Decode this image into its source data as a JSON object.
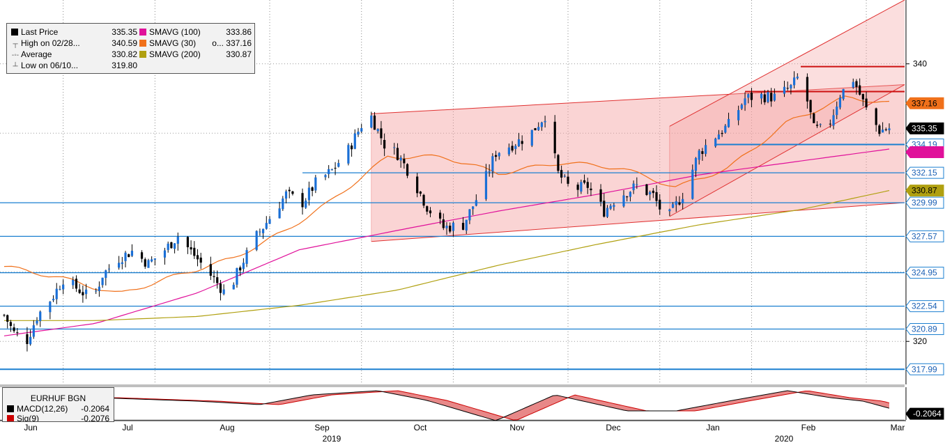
{
  "legend": {
    "rows_left": [
      {
        "symbol": "■",
        "label": "Last Price",
        "value": "335.35",
        "color": "#000000"
      },
      {
        "symbol": "┬",
        "label": "High on 02/28...",
        "value": "340.59",
        "color": ""
      },
      {
        "symbol": "-◦-",
        "label": "Average",
        "value": "330.82",
        "color": ""
      },
      {
        "symbol": "┴",
        "label": "Low on 06/10...",
        "value": "319.80",
        "color": ""
      }
    ],
    "rows_right": [
      {
        "label": "SMAVG (100)",
        "value": "333.86",
        "color": "#e0109a"
      },
      {
        "label": "SMAVG (30)",
        "value": "o... 337.16",
        "color": "#f0701a"
      },
      {
        "label": "SMAVG (200)",
        "value": "330.87",
        "color": "#b0a010"
      }
    ]
  },
  "macd_panel": {
    "title": "EURHUF BGN",
    "rows": [
      {
        "label": "MACD(12,26)",
        "value": "-0.2064",
        "color": "#000000"
      },
      {
        "label": "Sig(9)",
        "value": "-0.2076",
        "color": "#cc0000"
      }
    ],
    "last_label": "-0.2064"
  },
  "price_tags": [
    {
      "value": "337.16",
      "bg": "#f0701a",
      "fg": "#000000"
    },
    {
      "value": "335.35",
      "bg": "#000000",
      "fg": "#ffffff"
    },
    {
      "value": "334.19",
      "bg": "#ffffff",
      "fg": "#1a5fb4",
      "border": "#1a7fd0"
    },
    {
      "value": "333.86",
      "bg": "#e0109a",
      "fg": "#e0109a"
    },
    {
      "value": "332.15",
      "bg": "#ffffff",
      "fg": "#1a5fb4",
      "border": "#1a7fd0"
    },
    {
      "value": "330.87",
      "bg": "#b0a010",
      "fg": "#000000"
    },
    {
      "value": "329.99",
      "bg": "#ffffff",
      "fg": "#1a5fb4",
      "border": "#1a7fd0"
    },
    {
      "value": "327.57",
      "bg": "#ffffff",
      "fg": "#1a5fb4",
      "border": "#1a7fd0"
    },
    {
      "value": "324.95",
      "bg": "#ffffff",
      "fg": "#1a5fb4",
      "border": "#1a7fd0"
    },
    {
      "value": "322.54",
      "bg": "#ffffff",
      "fg": "#1a5fb4",
      "border": "#1a7fd0"
    },
    {
      "value": "320.89",
      "bg": "#ffffff",
      "fg": "#1a5fb4",
      "border": "#1a7fd0"
    },
    {
      "value": "317.99",
      "bg": "#ffffff",
      "fg": "#1a5fb4",
      "border": "#1a7fd0"
    }
  ],
  "colors": {
    "up": "#1a6fd6",
    "down": "#000000",
    "hline": "#1a7fd0",
    "channel_fill": "#f4a0a0",
    "channel_line": "#e03030",
    "sma30": "#f0701a",
    "sma100": "#e0109a",
    "sma200": "#b0a010"
  },
  "chart_data": {
    "type": "candlestick",
    "instrument": "EURHUF BGN",
    "ylim": [
      316.9,
      344.6
    ],
    "y_ticks": [
      320,
      340
    ],
    "x_ticks": [
      {
        "label": "Jun",
        "date": "2019-06"
      },
      {
        "label": "Jul",
        "date": "2019-07"
      },
      {
        "label": "Aug",
        "date": "2019-08"
      },
      {
        "label": "Sep",
        "date": "2019-09"
      },
      {
        "label": "Oct",
        "date": "2019-10"
      },
      {
        "label": "Nov",
        "date": "2019-11"
      },
      {
        "label": "Dec",
        "date": "2019-12"
      },
      {
        "label": "Jan",
        "date": "2020-01"
      },
      {
        "label": "Feb",
        "date": "2020-02"
      },
      {
        "label": "Mar",
        "date": "2020-03"
      }
    ],
    "year_labels": [
      "2019",
      "2020"
    ],
    "date_range": [
      "2019-06-03",
      "2020-02-28"
    ],
    "close_path": [
      [
        "2019-06-03",
        321.9
      ],
      [
        "2019-06-06",
        320.6
      ],
      [
        "2019-06-10",
        320.1
      ],
      [
        "2019-06-13",
        321.8
      ],
      [
        "2019-06-18",
        323.3
      ],
      [
        "2019-06-21",
        324.5
      ],
      [
        "2019-06-26",
        323.7
      ],
      [
        "2019-06-30",
        323.0
      ],
      [
        "2019-07-03",
        324.8
      ],
      [
        "2019-07-08",
        326.0
      ],
      [
        "2019-07-12",
        326.5
      ],
      [
        "2019-07-17",
        325.6
      ],
      [
        "2019-07-22",
        326.6
      ],
      [
        "2019-07-26",
        327.6
      ],
      [
        "2019-07-31",
        326.2
      ],
      [
        "2019-08-06",
        324.5
      ],
      [
        "2019-08-10",
        323.3
      ],
      [
        "2019-08-14",
        325.4
      ],
      [
        "2019-08-19",
        327.6
      ],
      [
        "2019-08-23",
        328.9
      ],
      [
        "2019-08-28",
        330.6
      ],
      [
        "2019-09-02",
        330.0
      ],
      [
        "2019-09-06",
        331.4
      ],
      [
        "2019-09-11",
        332.3
      ],
      [
        "2019-09-16",
        333.8
      ],
      [
        "2019-09-20",
        335.6
      ],
      [
        "2019-09-23",
        336.2
      ],
      [
        "2019-09-27",
        334.2
      ],
      [
        "2019-10-01",
        333.5
      ],
      [
        "2019-10-05",
        332.0
      ],
      [
        "2019-10-10",
        329.7
      ],
      [
        "2019-10-15",
        328.2
      ],
      [
        "2019-10-21",
        328.4
      ],
      [
        "2019-10-26",
        330.7
      ],
      [
        "2019-10-31",
        333.6
      ],
      [
        "2019-11-05",
        334.2
      ],
      [
        "2019-11-10",
        334.8
      ],
      [
        "2019-11-15",
        336.3
      ],
      [
        "2019-11-19",
        332.1
      ],
      [
        "2019-11-23",
        330.9
      ],
      [
        "2019-11-28",
        331.2
      ],
      [
        "2019-12-03",
        329.4
      ],
      [
        "2019-12-07",
        330.4
      ],
      [
        "2019-12-13",
        331.2
      ],
      [
        "2019-12-18",
        330.5
      ],
      [
        "2019-12-22",
        328.7
      ],
      [
        "2019-12-27",
        330.6
      ],
      [
        "2020-01-01",
        333.6
      ],
      [
        "2020-01-05",
        334.6
      ],
      [
        "2020-01-10",
        335.6
      ],
      [
        "2020-01-15",
        337.5
      ],
      [
        "2020-01-19",
        337.7
      ],
      [
        "2020-01-24",
        337.6
      ],
      [
        "2020-01-29",
        338.3
      ],
      [
        "2020-02-01",
        339.3
      ],
      [
        "2020-02-05",
        335.3
      ],
      [
        "2020-02-09",
        335.2
      ],
      [
        "2020-02-13",
        337.8
      ],
      [
        "2020-02-17",
        338.9
      ],
      [
        "2020-02-21",
        336.7
      ],
      [
        "2020-02-25",
        335.2
      ],
      [
        "2020-02-28",
        335.35
      ]
    ],
    "series": [
      {
        "name": "SMAVG (30)",
        "points": [
          [
            "2019-06-03",
            325.4
          ],
          [
            "2019-06-20",
            324.6
          ],
          [
            "2019-07-08",
            323.4
          ],
          [
            "2019-07-25",
            324.7
          ],
          [
            "2019-08-12",
            326.0
          ],
          [
            "2019-08-28",
            328.0
          ],
          [
            "2019-09-10",
            330.0
          ],
          [
            "2019-09-28",
            333.3
          ],
          [
            "2019-10-15",
            333.3
          ],
          [
            "2019-11-01",
            332.1
          ],
          [
            "2019-11-20",
            332.9
          ],
          [
            "2019-12-08",
            332.5
          ],
          [
            "2019-12-25",
            331.1
          ],
          [
            "2020-01-10",
            332.5
          ],
          [
            "2020-01-28",
            335.8
          ],
          [
            "2020-02-15",
            337.6
          ],
          [
            "2020-02-28",
            337.16
          ]
        ]
      },
      {
        "name": "SMAVG (100)",
        "points": [
          [
            "2019-06-03",
            320.4
          ],
          [
            "2019-07-01",
            321.3
          ],
          [
            "2019-08-01",
            323.5
          ],
          [
            "2019-09-01",
            326.6
          ],
          [
            "2019-10-01",
            328.0
          ],
          [
            "2019-11-01",
            329.4
          ],
          [
            "2019-12-01",
            330.6
          ],
          [
            "2020-01-01",
            332.0
          ],
          [
            "2020-02-01",
            333.0
          ],
          [
            "2020-02-28",
            333.86
          ]
        ]
      },
      {
        "name": "SMAVG (200)",
        "points": [
          [
            "2019-06-03",
            321.5
          ],
          [
            "2019-07-01",
            321.5
          ],
          [
            "2019-08-01",
            321.8
          ],
          [
            "2019-09-01",
            322.6
          ],
          [
            "2019-10-01",
            323.7
          ],
          [
            "2019-11-01",
            325.5
          ],
          [
            "2019-12-01",
            327.0
          ],
          [
            "2020-01-01",
            328.4
          ],
          [
            "2020-02-01",
            329.5
          ],
          [
            "2020-02-28",
            330.87
          ]
        ]
      }
    ],
    "horizontal_levels": [
      332.15,
      329.99,
      327.57,
      324.95,
      322.54,
      320.89,
      317.99
    ],
    "short_levels": [
      {
        "value": 334.19,
        "from": "2020-01-06",
        "to": "2020-02-28",
        "color": "#1a7fd0"
      },
      {
        "value": 339.8,
        "from": "2020-02-01",
        "to": "2020-02-28",
        "color": "#cc1010"
      },
      {
        "value": 338.0,
        "from": "2020-01-15",
        "to": "2020-02-28",
        "color": "#cc1010"
      }
    ],
    "channels": [
      {
        "from": "2019-09-23",
        "to": "2020-02-28",
        "lower": [
          327.2,
          330.0
        ],
        "upper": [
          336.4,
          338.5
        ]
      },
      {
        "from": "2019-12-23",
        "to": "2020-02-28",
        "lower": [
          329.0,
          338.5
        ],
        "upper": [
          335.5,
          344.6
        ]
      }
    ],
    "macd": {
      "type": "line",
      "series": [
        {
          "name": "MACD(12,26)",
          "last": -0.2064
        },
        {
          "name": "Sig(9)",
          "last": -0.2076
        }
      ],
      "path": [
        [
          "2019-06-03",
          0.1
        ],
        [
          "2019-07-01",
          0.55
        ],
        [
          "2019-08-01",
          0.3
        ],
        [
          "2019-08-20",
          0.05
        ],
        [
          "2019-09-05",
          0.75
        ],
        [
          "2019-09-25",
          1.05
        ],
        [
          "2019-10-10",
          0.35
        ],
        [
          "2019-10-31",
          -1.1
        ],
        [
          "2019-11-18",
          0.75
        ],
        [
          "2019-12-10",
          -0.4
        ],
        [
          "2019-12-25",
          -0.4
        ],
        [
          "2020-01-10",
          0.3
        ],
        [
          "2020-01-28",
          1.05
        ],
        [
          "2020-02-10",
          0.55
        ],
        [
          "2020-02-20",
          0.3
        ],
        [
          "2020-02-28",
          -0.21
        ]
      ]
    }
  }
}
